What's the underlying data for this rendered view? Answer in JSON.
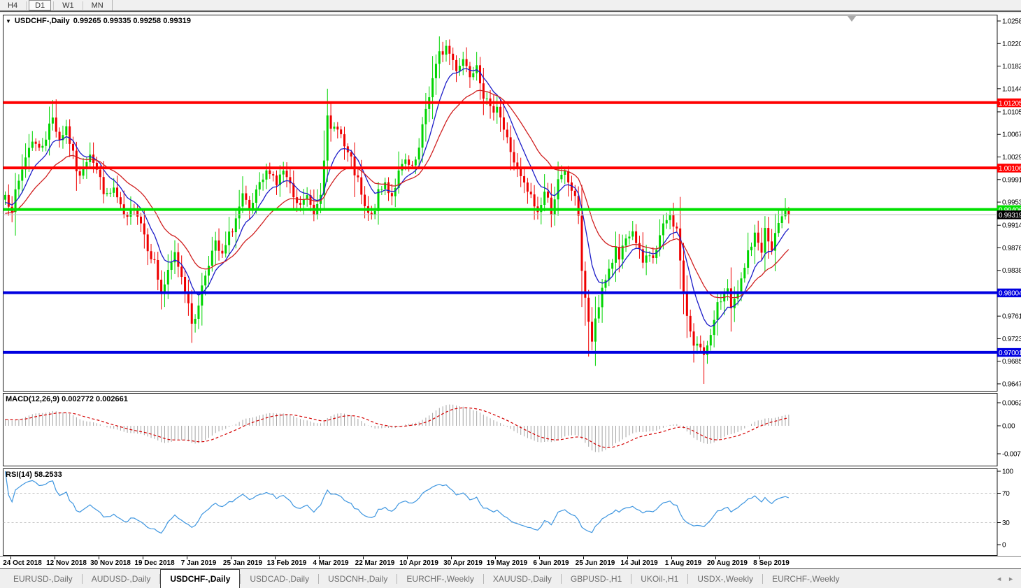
{
  "toolbar": {
    "buttons": [
      {
        "label": "H4",
        "active": false
      },
      {
        "label": "D1",
        "active": true
      },
      {
        "label": "W1",
        "active": false
      },
      {
        "label": "MN",
        "active": false
      }
    ]
  },
  "chart": {
    "symbol_label": "USDCHF-,Daily",
    "ohlc_text": "0.99265 0.99335 0.99258 0.99319"
  },
  "macd_panel": {
    "label": "MACD(12,26,9) 0.002772 0.002661"
  },
  "rsi_panel": {
    "label": "RSI(14) 58.2533"
  },
  "tabs": {
    "items": [
      {
        "label": "EURUSD-,Daily",
        "active": false
      },
      {
        "label": "AUDUSD-,Daily",
        "active": false
      },
      {
        "label": "USDCHF-,Daily",
        "active": true
      },
      {
        "label": "USDCAD-,Daily",
        "active": false
      },
      {
        "label": "USDCNH-,Daily",
        "active": false
      },
      {
        "label": "EURCHF-,Weekly",
        "active": false
      },
      {
        "label": "XAUUSD-,Daily",
        "active": false
      },
      {
        "label": "GBPUSD-,H1",
        "active": false
      },
      {
        "label": "UKOil-,H1",
        "active": false
      },
      {
        "label": "USDX-,Weekly",
        "active": false
      },
      {
        "label": "EURCHF-,Weekly",
        "active": false
      }
    ],
    "scroll_left": "◄",
    "scroll_right": "►"
  },
  "chart_data": {
    "type": "candlestick",
    "symbol": "USDCHF",
    "timeframe": "Daily",
    "title": "USDCHF-,Daily",
    "ohlc_current": {
      "open": 0.99265,
      "high": 0.99335,
      "low": 0.99258,
      "close": 0.99319
    },
    "ylim": [
      0.9647,
      1.0258
    ],
    "bars": 232,
    "seed": 7,
    "candle_colors": {
      "bull": "#00D400",
      "bear": "#EE0000"
    },
    "price_ticks": [
      "1.02580",
      "1.02200",
      "1.01820",
      "1.01440",
      "1.01050",
      "1.00670",
      "1.00290",
      "0.99910",
      "0.99530",
      "0.99140",
      "0.98760",
      "0.98380",
      "0.97610",
      "0.97230",
      "0.96850",
      "0.96470"
    ],
    "hlines": [
      {
        "price": 1.01205,
        "label": "1.01205",
        "color": "#FF0000",
        "width": 4
      },
      {
        "price": 1.00106,
        "label": "1.00106",
        "color": "#FF0000",
        "width": 4
      },
      {
        "price": 0.99406,
        "label": "0.99406",
        "color": "#00E000",
        "width": 4
      },
      {
        "price": 0.98004,
        "label": "0.98004",
        "color": "#0000E0",
        "width": 4
      },
      {
        "price": 0.97001,
        "label": "0.97001",
        "color": "#0000E0",
        "width": 4
      }
    ],
    "current_price": {
      "price": 0.99319,
      "label": "0.99319",
      "line_color": "#BDBDBD",
      "box_color": "#000000"
    },
    "moving_averages": [
      {
        "name": "fast",
        "period": 9,
        "color": "#1C1CC8"
      },
      {
        "name": "slow",
        "period": 22,
        "color": "#D02020"
      }
    ],
    "macd": {
      "params": "12,26,9",
      "main": 0.002772,
      "signal": 0.002661,
      "axis_ticks": [
        "0.006286",
        "0.00",
        "-0.00762"
      ],
      "hist_color": "#A4A4A4",
      "signal_color": "#D40000"
    },
    "rsi": {
      "period": 14,
      "value": 58.2533,
      "axis_ticks": [
        "100",
        "70",
        "30",
        "0"
      ],
      "levels": [
        70,
        30
      ],
      "color": "#3E96E0",
      "level_color": "#C4C4C4"
    },
    "x_labels": [
      "24 Oct 2018",
      "12 Nov 2018",
      "30 Nov 2018",
      "19 Dec 2018",
      "7 Jan 2019",
      "25 Jan 2019",
      "13 Feb 2019",
      "4 Mar 2019",
      "22 Mar 2019",
      "10 Apr 2019",
      "30 Apr 2019",
      "19 May 2019",
      "6 Jun 2019",
      "25 Jun 2019",
      "14 Jul 2019",
      "1 Aug 2019",
      "20 Aug 2019",
      "8 Sep 2019"
    ],
    "close_anchors": [
      [
        0,
        0.9965
      ],
      [
        2,
        0.9945
      ],
      [
        4,
        0.9985
      ],
      [
        6,
        1.003
      ],
      [
        8,
        1.006
      ],
      [
        10,
        1.004
      ],
      [
        12,
        1.0065
      ],
      [
        14,
        1.0095
      ],
      [
        16,
        1.006
      ],
      [
        18,
        1.008
      ],
      [
        20,
        1.003
      ],
      [
        22,
        0.999
      ],
      [
        23,
        1.0015
      ],
      [
        25,
        1.004
      ],
      [
        28,
        0.999
      ],
      [
        30,
        0.996
      ],
      [
        32,
        0.9975
      ],
      [
        34,
        0.994
      ],
      [
        36,
        0.992
      ],
      [
        38,
        0.995
      ],
      [
        40,
        0.992
      ],
      [
        42,
        0.988
      ],
      [
        44,
        0.985
      ],
      [
        46,
        0.98
      ],
      [
        48,
        0.983
      ],
      [
        50,
        0.9865
      ],
      [
        52,
        0.983
      ],
      [
        54,
        0.979
      ],
      [
        55,
        0.974
      ],
      [
        56,
        0.976
      ],
      [
        58,
        0.981
      ],
      [
        60,
        0.9855
      ],
      [
        62,
        0.988
      ],
      [
        64,
        0.986
      ],
      [
        66,
        0.9895
      ],
      [
        68,
        0.9925
      ],
      [
        70,
        0.996
      ],
      [
        72,
        0.9935
      ],
      [
        74,
        0.9965
      ],
      [
        76,
        0.999
      ],
      [
        78,
        1.001
      ],
      [
        80,
        0.9985
      ],
      [
        82,
        1.0005
      ],
      [
        84,
        0.9975
      ],
      [
        86,
        0.9945
      ],
      [
        89,
        0.996
      ],
      [
        91,
        0.9935
      ],
      [
        93,
        0.9975
      ],
      [
        95,
        1.009
      ],
      [
        96,
        1.007
      ],
      [
        98,
        1.0085
      ],
      [
        100,
        1.0045
      ],
      [
        102,
        1.002
      ],
      [
        104,
        0.9985
      ],
      [
        106,
        0.994
      ],
      [
        108,
        0.9925
      ],
      [
        110,
        0.9965
      ],
      [
        112,
        0.9985
      ],
      [
        114,
        0.9965
      ],
      [
        116,
        1.0
      ],
      [
        118,
        1.002
      ],
      [
        120,
        1.0005
      ],
      [
        122,
        1.004
      ],
      [
        124,
        1.011
      ],
      [
        126,
        1.016
      ],
      [
        128,
        1.02
      ],
      [
        130,
        1.0215
      ],
      [
        133,
        1.018
      ],
      [
        135,
        1.0195
      ],
      [
        137,
        1.017
      ],
      [
        139,
        1.019
      ],
      [
        141,
        1.0135
      ],
      [
        143,
        1.0105
      ],
      [
        145,
        1.012
      ],
      [
        147,
        1.0075
      ],
      [
        149,
        1.004
      ],
      [
        151,
        1.0005
      ],
      [
        153,
        0.998
      ],
      [
        155,
        0.996
      ],
      [
        157,
        0.9935
      ],
      [
        159,
        0.997
      ],
      [
        161,
        0.994
      ],
      [
        163,
        0.9985
      ],
      [
        165,
        1.0
      ],
      [
        167,
        0.9975
      ],
      [
        169,
        0.9935
      ],
      [
        170,
        0.984
      ],
      [
        172,
        0.9745
      ],
      [
        173,
        0.972
      ],
      [
        175,
        0.9775
      ],
      [
        176,
        0.981
      ],
      [
        178,
        0.984
      ],
      [
        180,
        0.987
      ],
      [
        181,
        0.9855
      ],
      [
        183,
        0.9885
      ],
      [
        185,
        0.9905
      ],
      [
        186,
        0.988
      ],
      [
        188,
        0.985
      ],
      [
        190,
        0.987
      ],
      [
        191,
        0.9855
      ],
      [
        193,
        0.9895
      ],
      [
        195,
        0.9925
      ],
      [
        196,
        0.9935
      ],
      [
        198,
        0.9905
      ],
      [
        199,
        0.985
      ],
      [
        200,
        0.979
      ],
      [
        202,
        0.974
      ],
      [
        203,
        0.972
      ],
      [
        205,
        0.97
      ],
      [
        206,
        0.969
      ],
      [
        208,
        0.972
      ],
      [
        209,
        0.976
      ],
      [
        211,
        0.979
      ],
      [
        213,
        0.981
      ],
      [
        214,
        0.977
      ],
      [
        216,
        0.98
      ],
      [
        218,
        0.984
      ],
      [
        219,
        0.987
      ],
      [
        221,
        0.9895
      ],
      [
        223,
        0.9875
      ],
      [
        224,
        0.9905
      ],
      [
        226,
        0.987
      ],
      [
        227,
        0.99
      ],
      [
        229,
        0.992
      ],
      [
        230,
        0.9945
      ],
      [
        231,
        0.99319
      ]
    ],
    "spikes": [
      {
        "i": 14,
        "high": 1.0125
      },
      {
        "i": 55,
        "low": 0.9716
      },
      {
        "i": 95,
        "high": 1.0144
      },
      {
        "i": 130,
        "high": 1.0226
      },
      {
        "i": 139,
        "high": 1.0206
      },
      {
        "i": 165,
        "high": 1.0011
      },
      {
        "i": 172,
        "low": 0.9693
      },
      {
        "i": 206,
        "low": 0.9647
      },
      {
        "i": 214,
        "low": 0.9735
      },
      {
        "i": 230,
        "high": 0.996
      }
    ]
  }
}
